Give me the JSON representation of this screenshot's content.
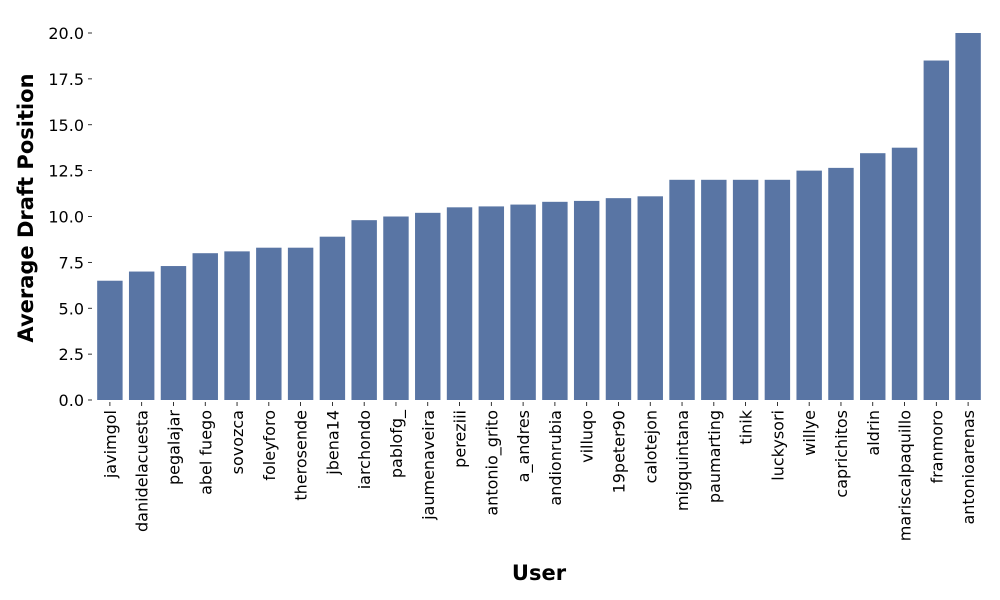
{
  "chart_data": {
    "type": "bar",
    "xlabel": "User",
    "ylabel": "Average Draft Position",
    "ylim": [
      0,
      20
    ],
    "yticks": [
      "0.0",
      "2.5",
      "5.0",
      "7.5",
      "10.0",
      "12.5",
      "15.0",
      "17.5",
      "20.0"
    ],
    "bar_color": "#5975a4",
    "grid": false,
    "categories": [
      "javimgol",
      "danidelacuesta",
      "pegalajar",
      "abel fuego",
      "sovozca",
      "foleyforo",
      "therosende",
      "jbena14",
      "iarchondo",
      "pablofg_",
      "jaumenaveira",
      "pereziii",
      "antonio_grito",
      "a_andres",
      "andionrubia",
      "villuqo",
      "19peter90",
      "calotejon",
      "migquintana",
      "paumarting",
      "tinik",
      "luckysori",
      "willye",
      "caprichitos",
      "aldrin",
      "mariscalpaquillo",
      "franmoro",
      "antonioarenas"
    ],
    "values": [
      6.5,
      7.0,
      7.3,
      8.0,
      8.1,
      8.3,
      8.3,
      8.9,
      9.8,
      10.0,
      10.2,
      10.5,
      10.55,
      10.65,
      10.8,
      10.85,
      11.0,
      11.1,
      12.0,
      12.0,
      12.0,
      12.0,
      12.5,
      12.65,
      13.45,
      13.75,
      18.5,
      20.0
    ]
  }
}
